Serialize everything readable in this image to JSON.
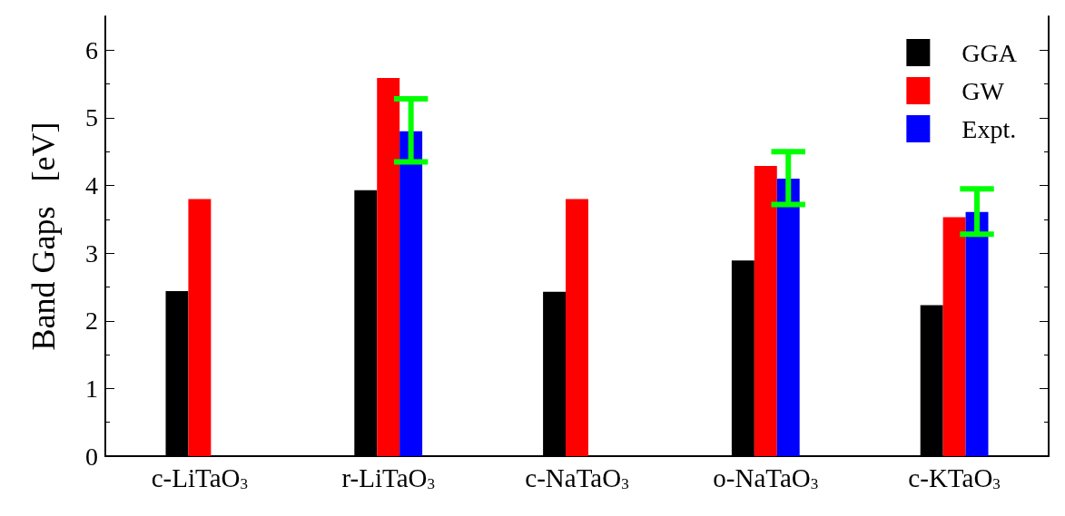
{
  "chart_data": {
    "type": "bar",
    "ylabel": "Band Gaps   [eV]",
    "categories": [
      "c-LiTaO$_{3}$",
      "r-LiTaO$_{3}$",
      "c-NaTaO$_{3}$",
      "o-NaTaO$_{3}$",
      "c-KTaO$_{3}$"
    ],
    "series": [
      {
        "name": "GGA",
        "color": "#000000",
        "values": [
          2.44,
          3.93,
          2.43,
          2.89,
          2.23
        ]
      },
      {
        "name": "GW",
        "color": "#ff0000",
        "values": [
          3.8,
          5.59,
          3.8,
          4.29,
          3.53
        ]
      },
      {
        "name": "Expt.",
        "color": "#0000ff",
        "values": [
          null,
          4.8,
          null,
          4.1,
          3.61
        ],
        "errors": [
          null,
          [
            4.35,
            5.28
          ],
          null,
          [
            3.72,
            4.5
          ],
          [
            3.28,
            3.95
          ]
        ]
      }
    ],
    "ylim": [
      0,
      6.5
    ],
    "yticks": [
      0,
      1,
      2,
      3,
      4,
      5,
      6
    ],
    "legend": "top right",
    "grid": false
  }
}
